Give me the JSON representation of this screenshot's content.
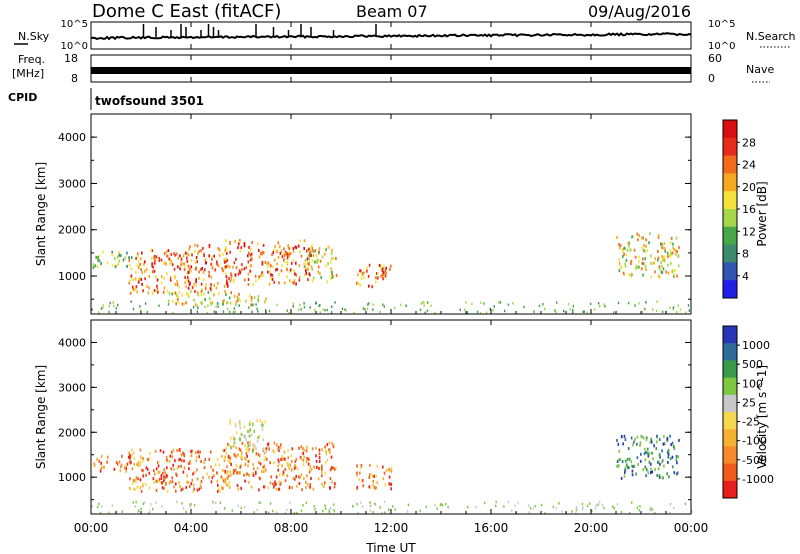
{
  "header": {
    "title": "Dome C East (fitACF)",
    "beam": "Beam 07",
    "date": "09/Aug/2016"
  },
  "panels": {
    "nsky": {
      "label": "N.Sky",
      "right_label": "N.Search",
      "left_ticks": [
        "10^5",
        "10^0"
      ],
      "right_ticks": [
        "10^5",
        "10^0"
      ],
      "spikes_hours": [
        2.1,
        2.6,
        3.2,
        3.6,
        3.8,
        4.4,
        4.7,
        4.9,
        5.1,
        6.6,
        7.3,
        7.9,
        8.4,
        8.8,
        9.7,
        11.4
      ]
    },
    "freq": {
      "label": "Freq.",
      "unit": "[MHz]",
      "left_ticks": [
        "18",
        "8"
      ],
      "right_ticks": [
        "60",
        "0"
      ],
      "right_label": "Nave"
    },
    "cpid": {
      "label": "CPID",
      "value": "twofsound 3501"
    }
  },
  "colors": {
    "power": [
      "#1f1fe6",
      "#2f56b0",
      "#3d8a6e",
      "#48a848",
      "#a6d64a",
      "#f3e33a",
      "#f6a81e",
      "#f26c1c",
      "#e82c1c",
      "#d80e10"
    ],
    "velocity": [
      "#e81e1e",
      "#f25a1a",
      "#f58a2a",
      "#f6b130",
      "#f6d750",
      "#c8c8c8",
      "#7cc841",
      "#3a9a4c",
      "#2f6c9a",
      "#2636b6"
    ]
  },
  "chart_data": [
    {
      "type": "heatmap",
      "name": "power",
      "xlabel": "",
      "ylabel": "Slant Range [km]",
      "xlim": [
        0,
        24
      ],
      "ylim": [
        180,
        4500
      ],
      "y_ticks": [
        "1000",
        "2000",
        "3000",
        "4000"
      ],
      "colorbar": {
        "label": "Power [dB]",
        "ticks": [
          "4",
          "8",
          "12",
          "16",
          "20",
          "24",
          "28"
        ],
        "range": [
          0,
          32
        ]
      },
      "regions": [
        {
          "x": [
            0.0,
            1.6
          ],
          "y": [
            1200,
            1550
          ],
          "level": "low"
        },
        {
          "x": [
            1.5,
            4.0
          ],
          "y": [
            650,
            1600
          ],
          "level": "high"
        },
        {
          "x": [
            3.8,
            5.5
          ],
          "y": [
            700,
            1700
          ],
          "level": "high"
        },
        {
          "x": [
            5.3,
            8.8
          ],
          "y": [
            850,
            1800
          ],
          "level": "high"
        },
        {
          "x": [
            8.5,
            9.8
          ],
          "y": [
            900,
            1700
          ],
          "level": "mid"
        },
        {
          "x": [
            10.6,
            12.0
          ],
          "y": [
            750,
            1300
          ],
          "level": "high"
        },
        {
          "x": [
            3.0,
            7.0
          ],
          "y": [
            400,
            700
          ],
          "level": "mid"
        },
        {
          "x": [
            21.0,
            23.5
          ],
          "y": [
            1000,
            1950
          ],
          "level": "mid"
        }
      ]
    },
    {
      "type": "heatmap",
      "name": "velocity",
      "xlabel": "Time UT",
      "ylabel": "Slant Range [km]",
      "xlim": [
        0,
        24
      ],
      "ylim": [
        180,
        4500
      ],
      "x_ticks": [
        "00:00",
        "04:00",
        "08:00",
        "12:00",
        "16:00",
        "20:00",
        "00:00"
      ],
      "y_ticks": [
        "1000",
        "2000",
        "3000",
        "4000"
      ],
      "colorbar": {
        "label": "Velocity [m s^-1]",
        "ticks": [
          "-1000",
          "-500",
          "-100",
          "-25",
          "25",
          "100",
          "500",
          "1000"
        ]
      },
      "regions": [
        {
          "x": [
            0.0,
            1.6
          ],
          "y": [
            1150,
            1500
          ],
          "level": "neg"
        },
        {
          "x": [
            1.5,
            5.5
          ],
          "y": [
            700,
            1650
          ],
          "level": "neg"
        },
        {
          "x": [
            5.3,
            9.8
          ],
          "y": [
            750,
            1800
          ],
          "level": "neg"
        },
        {
          "x": [
            5.5,
            7.0
          ],
          "y": [
            1600,
            2300
          ],
          "level": "zero"
        },
        {
          "x": [
            10.6,
            12.0
          ],
          "y": [
            750,
            1300
          ],
          "level": "neg"
        },
        {
          "x": [
            21.0,
            23.5
          ],
          "y": [
            1000,
            1950
          ],
          "level": "pos"
        }
      ]
    }
  ]
}
